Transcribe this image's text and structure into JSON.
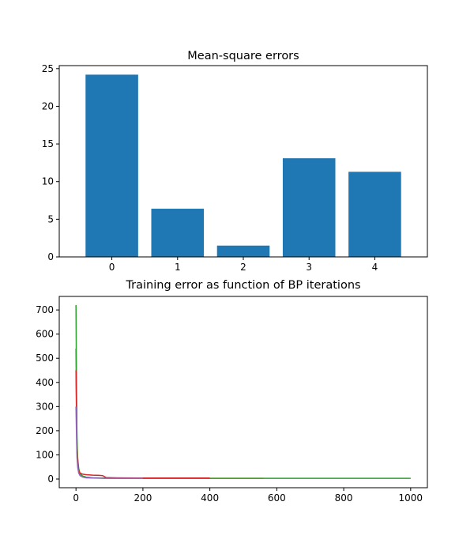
{
  "chart_data": [
    {
      "type": "bar",
      "title": "Mean-square errors",
      "xlabel": "",
      "ylabel": "",
      "categories": [
        "0",
        "1",
        "2",
        "3",
        "4"
      ],
      "values": [
        24.2,
        6.4,
        1.5,
        13.1,
        11.3
      ],
      "ylim": [
        0,
        25.4
      ],
      "yticks": [
        0,
        5,
        10,
        15,
        20,
        25
      ],
      "color": "#1f77b4",
      "grid": false
    },
    {
      "type": "line",
      "title": "Training error as function of BP iterations",
      "xlabel": "",
      "ylabel": "",
      "xlim": [
        -50,
        1050
      ],
      "ylim": [
        -36,
        756
      ],
      "xticks": [
        0,
        200,
        400,
        600,
        800,
        1000
      ],
      "yticks": [
        0,
        100,
        200,
        300,
        400,
        500,
        600,
        700
      ],
      "grid": false,
      "series": [
        {
          "color": "#1f77b4",
          "x": [
            0,
            1,
            2,
            3,
            5,
            8,
            12,
            20,
            30,
            50,
            80,
            120,
            200,
            300,
            400
          ],
          "y": [
            540,
            400,
            250,
            150,
            80,
            40,
            20,
            12,
            8,
            5,
            4,
            3,
            3,
            3,
            3
          ]
        },
        {
          "color": "#ff7f0e",
          "x": [
            0,
            1,
            2,
            3,
            5,
            8,
            12,
            20,
            30,
            50,
            80,
            120,
            200,
            300,
            400,
            560
          ],
          "y": [
            480,
            350,
            220,
            130,
            70,
            35,
            18,
            10,
            7,
            5,
            4,
            3,
            3,
            3,
            3,
            3
          ]
        },
        {
          "color": "#2ca02c",
          "x": [
            0,
            1,
            2,
            3,
            5,
            8,
            12,
            20,
            30,
            50,
            80,
            120,
            200,
            400,
            600,
            800,
            1000
          ],
          "y": [
            720,
            500,
            300,
            170,
            90,
            45,
            22,
            12,
            8,
            5,
            4,
            3,
            3,
            3,
            3,
            3,
            3
          ]
        },
        {
          "color": "#d62728",
          "x": [
            0,
            1,
            2,
            3,
            5,
            8,
            12,
            20,
            30,
            50,
            70,
            80,
            90,
            120,
            200,
            300,
            400
          ],
          "y": [
            450,
            330,
            210,
            120,
            65,
            35,
            25,
            20,
            18,
            16,
            15,
            14,
            6,
            5,
            4,
            4,
            4
          ]
        },
        {
          "color": "#9467bd",
          "x": [
            0,
            1,
            2,
            3,
            5,
            8,
            12,
            20,
            30,
            50,
            80,
            120,
            200
          ],
          "y": [
            300,
            220,
            150,
            90,
            50,
            25,
            14,
            8,
            5,
            4,
            3,
            3,
            3
          ]
        }
      ]
    }
  ]
}
